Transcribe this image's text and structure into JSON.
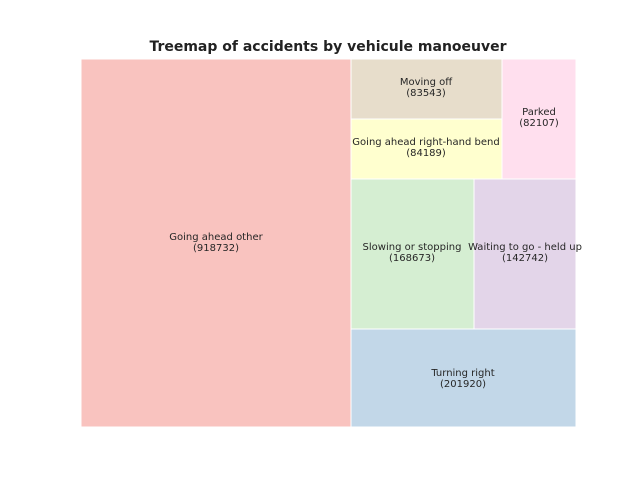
{
  "chart_data": {
    "type": "treemap",
    "title": "Treemap of accidents by vehicule manoeuver",
    "cells": [
      {
        "label": "Going ahead other",
        "value": 918732,
        "color": "#f9c3bf"
      },
      {
        "label": "Moving off",
        "value": 83543,
        "color": "#e7ddcb"
      },
      {
        "label": "Going ahead right-hand bend",
        "value": 84189,
        "color": "#ffffcf"
      },
      {
        "label": "Parked",
        "value": 82107,
        "color": "#ffdfee"
      },
      {
        "label": "Slowing or stopping",
        "value": 168673,
        "color": "#d5eed2"
      },
      {
        "label": "Waiting to go - held up",
        "value": 142742,
        "color": "#e3d5e9"
      },
      {
        "label": "Turning right",
        "value": 201920,
        "color": "#c2d7e8"
      }
    ]
  }
}
